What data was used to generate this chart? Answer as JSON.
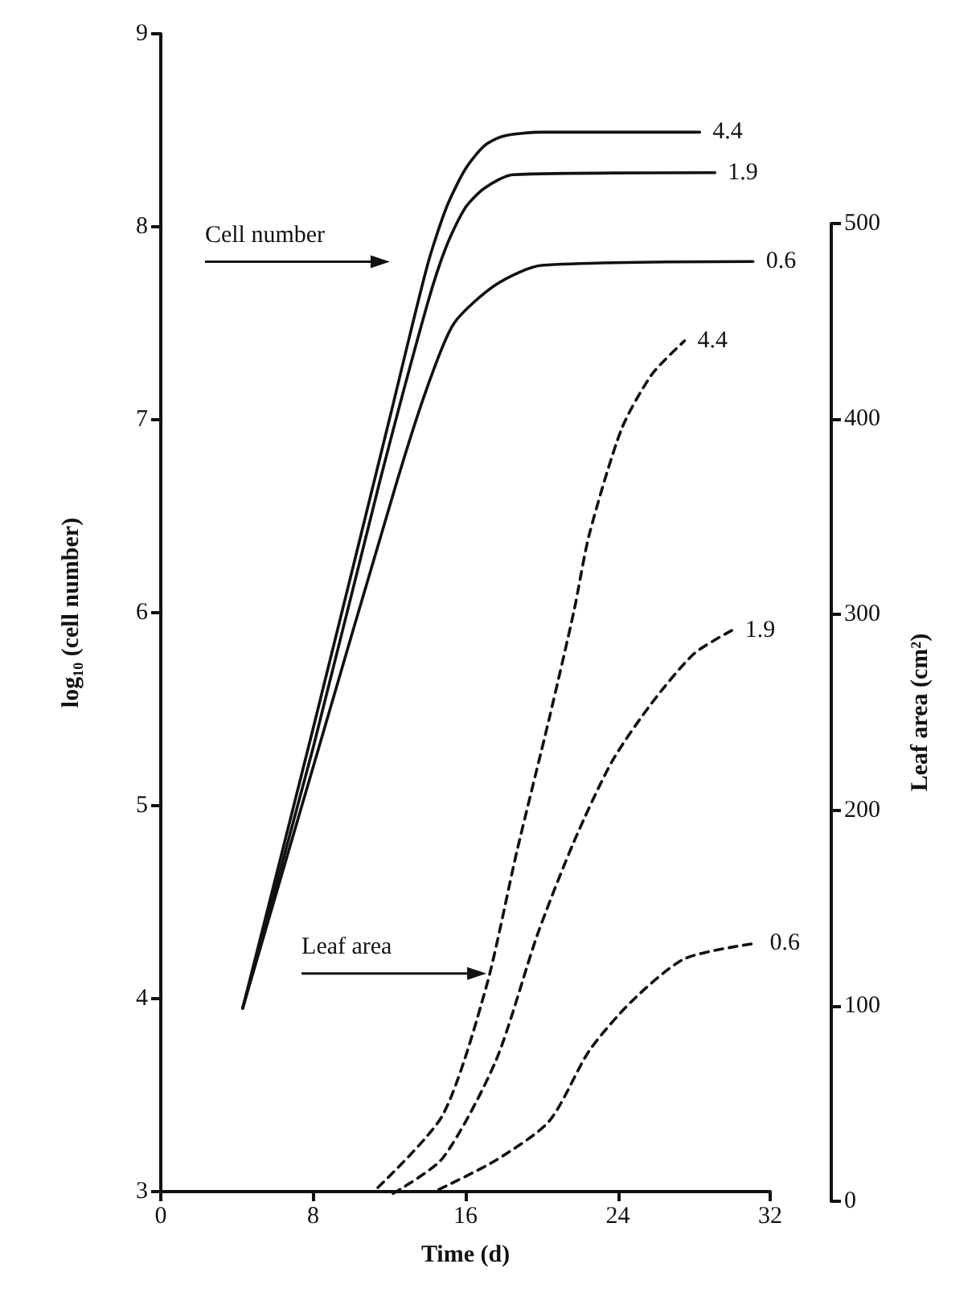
{
  "chart_data": {
    "type": "line",
    "xlabel": "Time (d)",
    "ylabel": "log₁₀ (cell number)",
    "y2label": "Leaf area (cm²)",
    "xlim": [
      0,
      32
    ],
    "xticks": [
      0,
      8,
      16,
      24,
      32
    ],
    "ylim": [
      3,
      9
    ],
    "yticks": [
      3,
      4,
      5,
      6,
      7,
      8,
      9
    ],
    "y2lim": [
      0,
      500
    ],
    "y2ticks": [
      0,
      100,
      200,
      300,
      400,
      500
    ],
    "grid": false,
    "legend": false,
    "marker": "none",
    "annotations": [
      "Cell number",
      {
        "text": "Leaf area",
        "x": 17.1,
        "y": 4.13
      }
    ],
    "series": [
      {
        "name": "4.4",
        "color": "#111111",
        "line_style": "solid",
        "x": [
          4.3,
          8,
          12,
          14,
          15,
          16,
          17,
          18,
          20,
          28.3
        ],
        "values": [
          3.95,
          5.4,
          7.0,
          7.8,
          8.1,
          8.3,
          8.42,
          8.47,
          8.49,
          8.49
        ]
      },
      {
        "name": "1.9",
        "color": "#111111",
        "line_style": "solid",
        "x": [
          4.3,
          8,
          11.5,
          14,
          15,
          16,
          17,
          18.5,
          29.1
        ],
        "values": [
          3.95,
          5.3,
          6.68,
          7.6,
          7.9,
          8.1,
          8.2,
          8.27,
          8.28
        ]
      },
      {
        "name": "0.6",
        "color": "#111111",
        "line_style": "solid",
        "x": [
          4.3,
          8,
          12.4,
          14,
          15.4,
          17.6,
          20,
          31.1
        ],
        "values": [
          3.95,
          5.2,
          6.68,
          7.17,
          7.5,
          7.7,
          7.8,
          7.82
        ]
      },
      {
        "name": "4.4",
        "color": "#111111",
        "line_style": "dashed",
        "axis": "y2",
        "x": [
          11.4,
          14.8,
          17.1,
          18.7,
          20.4,
          21.7,
          22.5,
          24.2,
          25.8,
          27.5
        ],
        "values": [
          7,
          44,
          110,
          179,
          247,
          302,
          341,
          395,
          423,
          440
        ]
      },
      {
        "name": "1.9",
        "color": "#111111",
        "line_style": "dashed",
        "axis": "y2",
        "x": [
          12.2,
          14.8,
          17.6,
          19.8,
          21.7,
          23.7,
          25.8,
          28,
          30
        ],
        "values": [
          4,
          22,
          72,
          137,
          184,
          225,
          255,
          280,
          292
        ]
      },
      {
        "name": "0.6",
        "color": "#111111",
        "line_style": "dashed",
        "axis": "y2",
        "x": [
          14.6,
          17.6,
          20.4,
          22.5,
          24.7,
          27.5,
          31.3
        ],
        "values": [
          6,
          21,
          41,
          77,
          102,
          124,
          132
        ]
      }
    ]
  }
}
